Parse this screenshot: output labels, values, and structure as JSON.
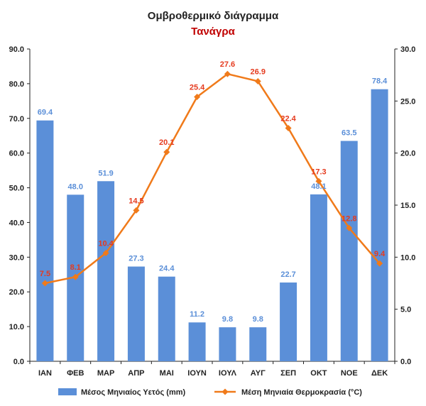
{
  "chart_data": {
    "type": "bar",
    "title": "Ομβροθερμικό διάγραμμα",
    "subtitle": "Τανάγρα",
    "categories": [
      "ΙΑΝ",
      "ΦΕΒ",
      "ΜΑΡ",
      "ΑΠΡ",
      "ΜΑΙ",
      "ΙΟΥΝ",
      "ΙΟΥΛ",
      "ΑΥΓ",
      "ΣΕΠ",
      "ΟΚΤ",
      "ΝΟΕ",
      "ΔΕΚ"
    ],
    "series": [
      {
        "name": "Μέσος Μηνιαίος Υετός (mm)",
        "type": "bar",
        "axis": "left",
        "values": [
          69.4,
          48.0,
          51.9,
          27.3,
          24.4,
          11.2,
          9.8,
          9.8,
          22.7,
          48.1,
          63.5,
          78.4
        ],
        "labels": [
          "69.4",
          "48.0",
          "51.9",
          "27.3",
          "24.4",
          "11.2",
          "9.8",
          "9.8",
          "22.7",
          "48.1",
          "63.5",
          "78.4"
        ]
      },
      {
        "name": "Μέση Μηνιαία Θερμοκρασία (°C)",
        "type": "line",
        "axis": "right",
        "values": [
          7.5,
          8.1,
          10.4,
          14.5,
          20.1,
          25.4,
          27.6,
          26.9,
          22.4,
          17.3,
          12.8,
          9.4
        ],
        "labels": [
          "7.5",
          "8.1",
          "10.4",
          "14.5",
          "20.1",
          "25.4",
          "27.6",
          "26.9",
          "22.4",
          "17.3",
          "12.8",
          "9.4"
        ]
      }
    ],
    "y_left": {
      "range": [
        0,
        90
      ],
      "ticks": [
        "0.0",
        "10.0",
        "20.0",
        "30.0",
        "40.0",
        "50.0",
        "60.0",
        "70.0",
        "80.0",
        "90.0"
      ]
    },
    "y_right": {
      "range": [
        0,
        30
      ],
      "ticks": [
        "0.0",
        "5.0",
        "10.0",
        "15.0",
        "20.0",
        "25.0",
        "30.0"
      ]
    },
    "grid": false,
    "legend_position": "bottom",
    "colors": {
      "bar": "#5b8fd8",
      "bar_label": "#5b8fd8",
      "line": "#f07a1a",
      "line_label": "#e53a1e",
      "subtitle": "#c00000",
      "axis": "#222222"
    }
  }
}
